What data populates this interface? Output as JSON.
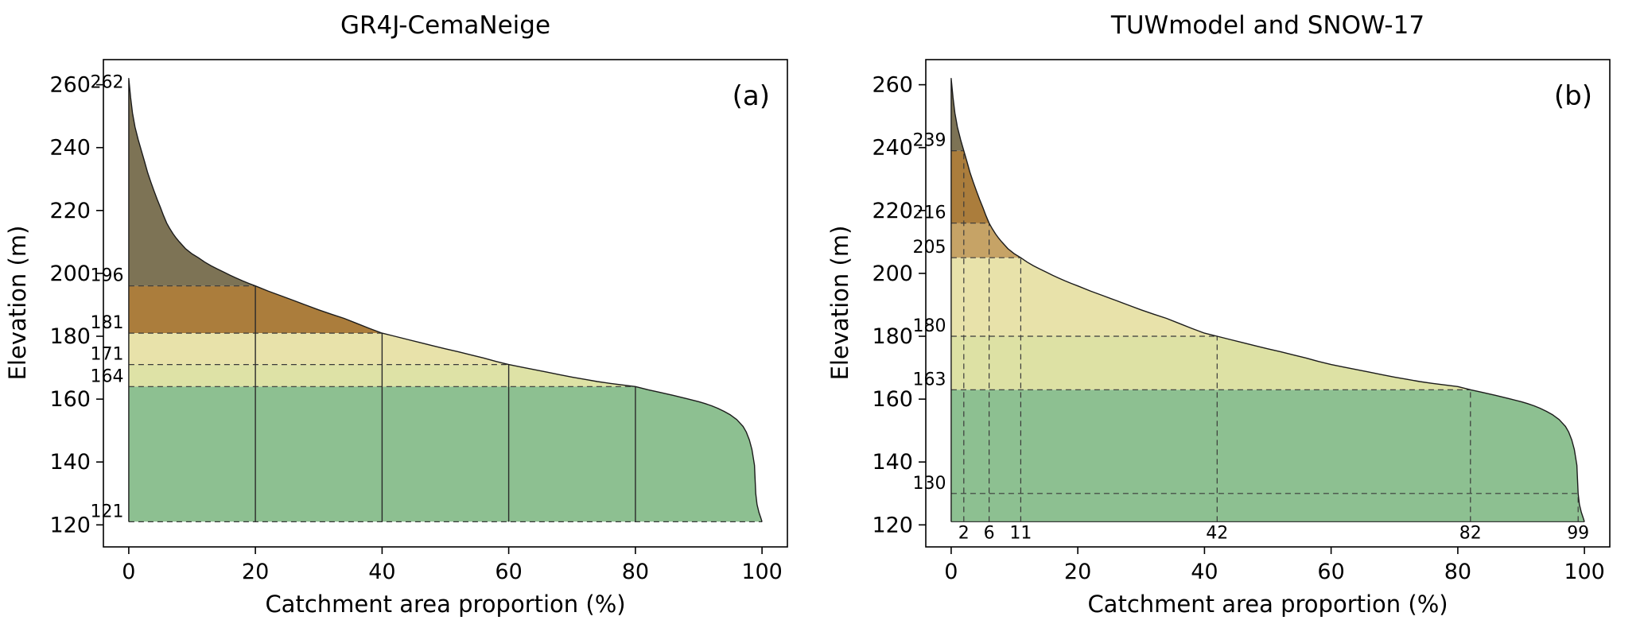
{
  "figure": {
    "background": "#ffffff",
    "text_color": "#000000",
    "annotation_color": "#2222cc",
    "guide_color": "#3a3a3a",
    "curve_color": "#1b1b1b"
  },
  "chart_data": [
    {
      "id": "a",
      "type": "area",
      "title": "GR4J-CemaNeige",
      "panel_label": "(a)",
      "xlabel": "Catchment area proportion (%)",
      "ylabel": "Elevation (m)",
      "xlim": [
        -4,
        104
      ],
      "ylim": [
        113,
        268
      ],
      "x_ticks": [
        0,
        20,
        40,
        60,
        80,
        100
      ],
      "y_ticks": [
        120,
        140,
        160,
        180,
        200,
        220,
        240,
        260
      ],
      "base_elevation": 121,
      "curve": {
        "x": [
          0,
          0.3,
          0.6,
          1,
          1.5,
          2,
          2.5,
          3,
          3.5,
          4,
          4.5,
          5,
          5.5,
          6,
          6.5,
          7,
          7.5,
          8,
          9,
          10,
          11,
          12,
          13,
          14,
          15,
          16,
          17,
          18,
          19,
          20,
          22,
          24,
          26,
          28,
          30,
          32,
          34,
          36,
          38,
          40,
          42,
          44,
          46,
          48,
          50,
          52,
          54,
          56,
          58,
          60,
          62,
          64,
          66,
          68,
          70,
          72,
          74,
          76,
          78,
          80,
          82,
          84,
          86,
          88,
          90,
          91,
          92,
          93,
          94,
          95,
          96,
          97,
          97.5,
          98,
          98.4,
          98.8,
          99,
          99.2,
          99.5,
          99.8,
          100
        ],
        "elevation": [
          262,
          256,
          251,
          246.5,
          242.5,
          239,
          235.5,
          232,
          229,
          226.2,
          223.5,
          221,
          218.4,
          216,
          214.2,
          212.6,
          211.2,
          210,
          207.8,
          206.2,
          205,
          203.6,
          202.4,
          201.4,
          200.4,
          199.4,
          198.5,
          197.6,
          196.8,
          196,
          194.4,
          192.9,
          191.4,
          189.9,
          188.4,
          187,
          185.7,
          184.1,
          182.5,
          181,
          180,
          179,
          178,
          177,
          176,
          175.1,
          174.1,
          173.1,
          172,
          171,
          170.2,
          169.4,
          168.6,
          167.8,
          167,
          166.3,
          165.6,
          165,
          164.5,
          164,
          163,
          162.1,
          161.2,
          160.2,
          159.2,
          158.6,
          157.9,
          157.1,
          156.1,
          155,
          153.5,
          151.3,
          149.6,
          147,
          144,
          139,
          130,
          126.5,
          124,
          122.2,
          121
        ]
      },
      "zones": [
        {
          "from": 121,
          "to": 164,
          "color": "#8dc091"
        },
        {
          "from": 164,
          "to": 171,
          "color": "#dee2a6"
        },
        {
          "from": 171,
          "to": 181,
          "color": "#e8e2aa"
        },
        {
          "from": 181,
          "to": 196,
          "color": "#ab7d3c"
        },
        {
          "from": 196,
          "to": 268,
          "color": "#7d7355"
        }
      ],
      "h_guides": [
        {
          "elevation": 196,
          "x_end": 20,
          "style": "dashed"
        },
        {
          "elevation": 181,
          "x_end": 40,
          "style": "dashed"
        },
        {
          "elevation": 171,
          "x_end": 60,
          "style": "dashed"
        },
        {
          "elevation": 164,
          "x_end": 80,
          "style": "dashed"
        },
        {
          "elevation": 121,
          "x_end": 100,
          "style": "dashed"
        }
      ],
      "v_guides": [
        {
          "x": 20,
          "top": 196,
          "style": "solid"
        },
        {
          "x": 40,
          "top": 181,
          "style": "solid"
        },
        {
          "x": 60,
          "top": 171,
          "style": "solid"
        },
        {
          "x": 80,
          "top": 164,
          "style": "solid"
        }
      ],
      "elevation_labels": [
        {
          "value": 262,
          "text": "262",
          "placement": "below"
        },
        {
          "value": 196,
          "text": "196",
          "placement": "above"
        },
        {
          "value": 181,
          "text": "181",
          "placement": "above"
        },
        {
          "value": 171,
          "text": "171",
          "placement": "above"
        },
        {
          "value": 164,
          "text": "164",
          "placement": "above"
        },
        {
          "value": 121,
          "text": "121",
          "placement": "above"
        }
      ],
      "x_annotations": []
    },
    {
      "id": "b",
      "type": "area",
      "title": "TUWmodel and SNOW-17",
      "panel_label": "(b)",
      "xlabel": "Catchment area proportion (%)",
      "ylabel": "Elevation (m)",
      "xlim": [
        -4,
        104
      ],
      "ylim": [
        113,
        268
      ],
      "x_ticks": [
        0,
        20,
        40,
        60,
        80,
        100
      ],
      "y_ticks": [
        120,
        140,
        160,
        180,
        200,
        220,
        240,
        260
      ],
      "base_elevation": 121,
      "curve": {
        "x": [
          0,
          0.3,
          0.6,
          1,
          1.5,
          2,
          2.5,
          3,
          3.5,
          4,
          4.5,
          5,
          5.5,
          6,
          6.5,
          7,
          7.5,
          8,
          9,
          10,
          11,
          12,
          13,
          14,
          15,
          16,
          17,
          18,
          19,
          20,
          22,
          24,
          26,
          28,
          30,
          32,
          34,
          36,
          38,
          40,
          42,
          44,
          46,
          48,
          50,
          52,
          54,
          56,
          58,
          60,
          62,
          64,
          66,
          68,
          70,
          72,
          74,
          76,
          78,
          80,
          82,
          84,
          86,
          88,
          90,
          91,
          92,
          93,
          94,
          95,
          96,
          97,
          97.5,
          98,
          98.4,
          98.8,
          99,
          99.2,
          99.5,
          99.8,
          100
        ],
        "elevation": [
          262,
          256,
          251,
          246.5,
          242.5,
          239,
          235.5,
          232,
          229,
          226.2,
          223.5,
          221,
          218.4,
          216,
          214.2,
          212.6,
          211.2,
          210,
          207.8,
          206.2,
          205,
          203.6,
          202.4,
          201.4,
          200.4,
          199.4,
          198.5,
          197.6,
          196.8,
          196,
          194.4,
          192.9,
          191.4,
          189.9,
          188.4,
          187,
          185.7,
          184.1,
          182.5,
          181,
          180,
          179,
          178,
          177,
          176,
          175.1,
          174.1,
          173.1,
          172,
          171,
          170.2,
          169.4,
          168.6,
          167.8,
          167,
          166.3,
          165.6,
          165,
          164.5,
          164,
          163,
          162.1,
          161.2,
          160.2,
          159.2,
          158.6,
          157.9,
          157.1,
          156.1,
          155,
          153.5,
          151.3,
          149.6,
          147,
          144,
          139,
          130,
          126.5,
          124,
          122.2,
          121
        ]
      },
      "zones": [
        {
          "from": 121,
          "to": 163,
          "color": "#8dc091"
        },
        {
          "from": 163,
          "to": 180,
          "color": "#dde1a4"
        },
        {
          "from": 180,
          "to": 205,
          "color": "#e8e2aa"
        },
        {
          "from": 205,
          "to": 216,
          "color": "#c6a366"
        },
        {
          "from": 216,
          "to": 239,
          "color": "#ab7d3c"
        },
        {
          "from": 239,
          "to": 268,
          "color": "#7d7355"
        }
      ],
      "h_guides": [
        {
          "elevation": 239,
          "x_end": 2,
          "style": "dashed"
        },
        {
          "elevation": 216,
          "x_end": 6,
          "style": "dashed"
        },
        {
          "elevation": 205,
          "x_end": 11,
          "style": "dashed"
        },
        {
          "elevation": 180,
          "x_end": 42,
          "style": "dashed"
        },
        {
          "elevation": 163,
          "x_end": 82,
          "style": "dashed"
        },
        {
          "elevation": 130,
          "x_end": 99,
          "style": "dashed"
        },
        {
          "elevation": 121,
          "x_end": 100,
          "style": "solid"
        }
      ],
      "v_guides": [
        {
          "x": 2,
          "top": 239,
          "style": "dashed"
        },
        {
          "x": 6,
          "top": 216,
          "style": "dashed"
        },
        {
          "x": 11,
          "top": 205,
          "style": "dashed"
        },
        {
          "x": 42,
          "top": 180,
          "style": "dashed"
        },
        {
          "x": 82,
          "top": 163,
          "style": "dashed"
        },
        {
          "x": 99,
          "top": 130,
          "style": "dashed"
        }
      ],
      "elevation_labels": [
        {
          "value": 239,
          "text": "239",
          "placement": "above"
        },
        {
          "value": 216,
          "text": "216",
          "placement": "above"
        },
        {
          "value": 205,
          "text": "205",
          "placement": "above"
        },
        {
          "value": 180,
          "text": "180",
          "placement": "above"
        },
        {
          "value": 163,
          "text": "163",
          "placement": "above"
        },
        {
          "value": 130,
          "text": "130",
          "placement": "above"
        }
      ],
      "x_annotations": [
        {
          "value": 2,
          "text": "2"
        },
        {
          "value": 6,
          "text": "6"
        },
        {
          "value": 11,
          "text": "11"
        },
        {
          "value": 42,
          "text": "42"
        },
        {
          "value": 82,
          "text": "82"
        },
        {
          "value": 99,
          "text": "99"
        }
      ]
    }
  ]
}
